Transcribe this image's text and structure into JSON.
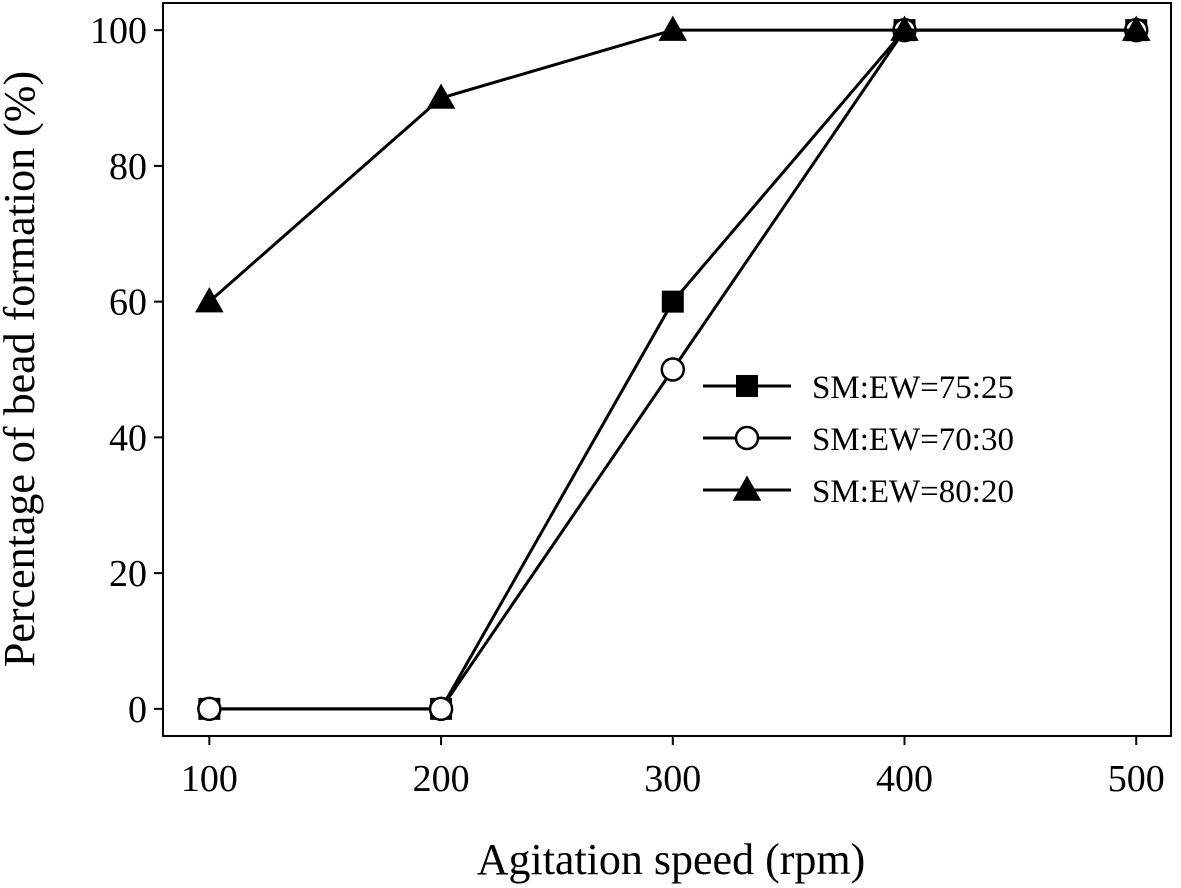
{
  "chart_data": {
    "type": "line",
    "title": "",
    "xlabel": "Agitation speed (rpm)",
    "ylabel": "Percentage of bead formation (%)",
    "xlim": [
      80,
      515
    ],
    "ylim": [
      -4,
      104
    ],
    "xticks": [
      100,
      200,
      300,
      400,
      500
    ],
    "yticks": [
      0,
      20,
      40,
      60,
      80,
      100
    ],
    "grid": false,
    "legend_position": "right-center",
    "x": [
      100,
      200,
      300,
      400,
      500
    ],
    "series": [
      {
        "name": "SM:EW=75:25",
        "marker": "square-filled",
        "values": [
          0,
          0,
          60,
          100,
          100
        ]
      },
      {
        "name": "SM:EW=70:30",
        "marker": "circle-open",
        "values": [
          0,
          0,
          50,
          100,
          100
        ]
      },
      {
        "name": "SM:EW=80:20",
        "marker": "triangle-filled",
        "values": [
          60,
          90,
          100,
          100,
          100
        ]
      }
    ],
    "colors": {
      "line": "#000000",
      "marker_fill": "#000000",
      "open_fill": "#ffffff"
    }
  }
}
